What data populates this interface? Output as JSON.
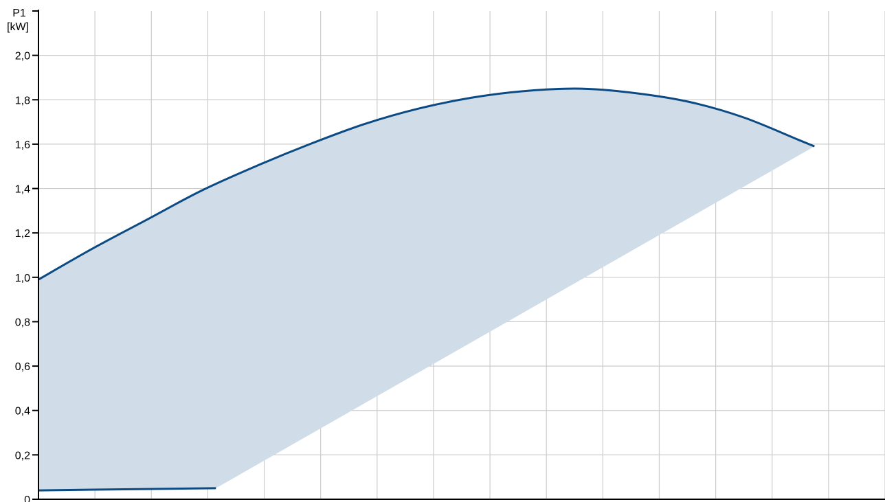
{
  "chart_data": {
    "type": "area",
    "title": "",
    "xlabel": "",
    "ylabel_lines": [
      "P1",
      "[kW]"
    ],
    "ylim": [
      0,
      2.2
    ],
    "xlim": [
      0,
      15.6
    ],
    "x_gridlines": 15,
    "y_ticks": [
      {
        "value": 0.0,
        "label": "0"
      },
      {
        "value": 0.2,
        "label": "0,2"
      },
      {
        "value": 0.4,
        "label": "0,4"
      },
      {
        "value": 0.6,
        "label": "0,6"
      },
      {
        "value": 0.8,
        "label": "0,8"
      },
      {
        "value": 1.0,
        "label": "1,0"
      },
      {
        "value": 1.2,
        "label": "1,2"
      },
      {
        "value": 1.4,
        "label": "1,4"
      },
      {
        "value": 1.6,
        "label": "1,6"
      },
      {
        "value": 1.8,
        "label": "1,8"
      },
      {
        "value": 2.0,
        "label": "2,0"
      }
    ],
    "grid": true,
    "colors": {
      "line": "#0b4a82",
      "fill": "#d0dce8",
      "grid": "#cccccc",
      "axis": "#000000"
    },
    "series": [
      {
        "x": [
          0,
          1,
          2,
          3,
          4,
          5,
          6,
          7,
          8,
          9,
          10,
          11,
          12,
          13,
          14,
          14.3
        ],
        "y": [
          0.99,
          1.13,
          1.26,
          1.39,
          1.5,
          1.6,
          1.69,
          1.76,
          1.81,
          1.84,
          1.85,
          1.83,
          1.79,
          1.72,
          1.62,
          1.59
        ]
      },
      {
        "x": [
          0,
          3.27
        ],
        "y": [
          0.04,
          0.05
        ]
      }
    ],
    "area_lower_boundary": {
      "x": [
        0,
        3.27,
        14.3
      ],
      "y": [
        0.04,
        0.05,
        1.59
      ]
    }
  }
}
